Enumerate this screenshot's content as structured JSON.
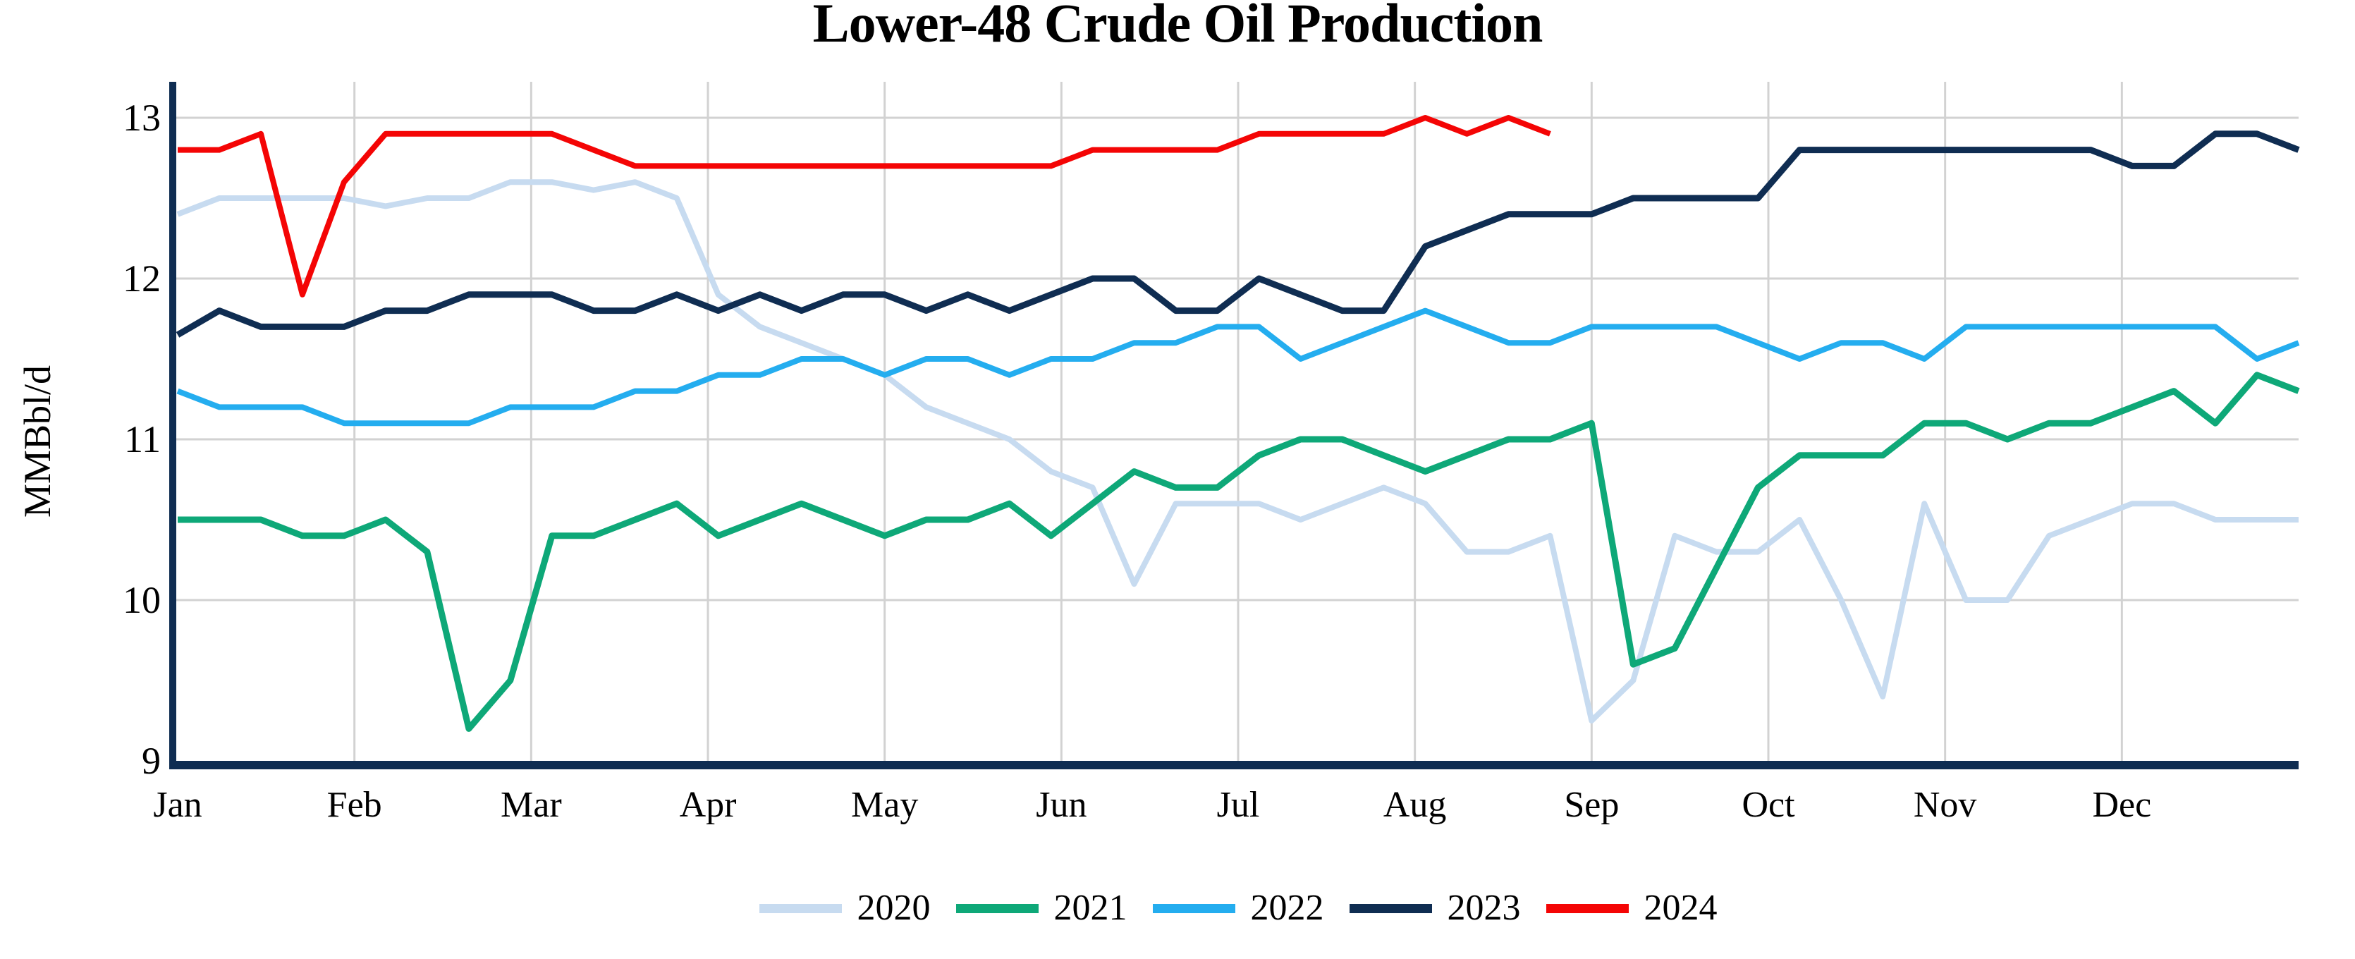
{
  "title": "Lower-48 Crude Oil Production",
  "y_axis": {
    "label": "MMBbl/d",
    "ticks": [
      13,
      12,
      11,
      10,
      9
    ],
    "min": 9,
    "max": 13
  },
  "x_axis": {
    "months": [
      "Jan",
      "Feb",
      "Mar",
      "Apr",
      "May",
      "Jun",
      "Jul",
      "Aug",
      "Sep",
      "Oct",
      "Nov",
      "Dec"
    ]
  },
  "legend": [
    {
      "label": "2020",
      "color": "#C7DBF0"
    },
    {
      "label": "2021",
      "color": "#0EA878"
    },
    {
      "label": "2022",
      "color": "#24ADEF"
    },
    {
      "label": "2023",
      "color": "#0F2D52"
    },
    {
      "label": "2024",
      "color": "#F40505"
    }
  ],
  "colors": {
    "axis": "#0F2D52",
    "gridline": "#D2D2D2",
    "text": "#000000",
    "background": "#FFFFFF"
  },
  "chart_data": {
    "type": "line",
    "title": "Lower-48 Crude Oil Production",
    "xlabel": "",
    "ylabel": "MMBbl/d",
    "ylim": [
      9,
      13
    ],
    "yticks": [
      9,
      10,
      11,
      12,
      13
    ],
    "x_unit": "week of year (weekly data, 52 weeks; 2024 partial through ~week 34)",
    "xtick_labels": [
      "Jan",
      "Feb",
      "Mar",
      "Apr",
      "May",
      "Jun",
      "Jul",
      "Aug",
      "Sep",
      "Oct",
      "Nov",
      "Dec"
    ],
    "grid": true,
    "legend_position": "bottom center",
    "series": [
      {
        "name": "2020",
        "color": "#C7DBF0",
        "line_width": 8,
        "values": [
          12.4,
          12.5,
          12.5,
          12.5,
          12.5,
          12.45,
          12.5,
          12.5,
          12.6,
          12.6,
          12.55,
          12.6,
          12.5,
          11.9,
          11.7,
          11.6,
          11.5,
          11.4,
          11.2,
          11.1,
          11.0,
          10.8,
          10.7,
          10.1,
          10.6,
          10.6,
          10.6,
          10.5,
          10.6,
          10.7,
          10.6,
          10.3,
          10.3,
          10.4,
          9.25,
          9.5,
          10.4,
          10.3,
          10.3,
          10.5,
          10.0,
          9.4,
          10.6,
          10.0,
          10.0,
          10.4,
          10.5,
          10.6,
          10.6,
          10.5,
          10.5,
          10.5
        ]
      },
      {
        "name": "2021",
        "color": "#0EA878",
        "line_width": 9,
        "values": [
          10.5,
          10.5,
          10.5,
          10.4,
          10.4,
          10.5,
          10.3,
          9.2,
          9.5,
          10.4,
          10.4,
          10.5,
          10.6,
          10.4,
          10.5,
          10.6,
          10.5,
          10.4,
          10.5,
          10.5,
          10.6,
          10.4,
          10.6,
          10.8,
          10.7,
          10.7,
          10.9,
          11.0,
          11.0,
          10.9,
          10.8,
          10.9,
          11.0,
          11.0,
          11.1,
          9.6,
          9.7,
          10.2,
          10.7,
          10.9,
          10.9,
          10.9,
          11.1,
          11.1,
          11.0,
          11.1,
          11.1,
          11.2,
          11.3,
          11.1,
          11.4,
          11.3
        ]
      },
      {
        "name": "2022",
        "color": "#24ADEF",
        "line_width": 8,
        "values": [
          11.3,
          11.2,
          11.2,
          11.2,
          11.1,
          11.1,
          11.1,
          11.1,
          11.2,
          11.2,
          11.2,
          11.3,
          11.3,
          11.4,
          11.4,
          11.5,
          11.5,
          11.4,
          11.5,
          11.5,
          11.4,
          11.5,
          11.5,
          11.6,
          11.6,
          11.7,
          11.7,
          11.5,
          11.6,
          11.7,
          11.8,
          11.7,
          11.6,
          11.6,
          11.7,
          11.7,
          11.7,
          11.7,
          11.6,
          11.5,
          11.6,
          11.6,
          11.5,
          11.7,
          11.7,
          11.7,
          11.7,
          11.7,
          11.7,
          11.7,
          11.5,
          11.6
        ]
      },
      {
        "name": "2023",
        "color": "#0F2D52",
        "line_width": 9,
        "values": [
          11.65,
          11.8,
          11.7,
          11.7,
          11.7,
          11.8,
          11.8,
          11.9,
          11.9,
          11.9,
          11.8,
          11.8,
          11.9,
          11.8,
          11.9,
          11.8,
          11.9,
          11.9,
          11.8,
          11.9,
          11.8,
          11.9,
          12.0,
          12.0,
          11.8,
          11.8,
          12.0,
          11.9,
          11.8,
          11.8,
          12.2,
          12.3,
          12.4,
          12.4,
          12.4,
          12.5,
          12.5,
          12.5,
          12.5,
          12.8,
          12.8,
          12.8,
          12.8,
          12.8,
          12.8,
          12.8,
          12.8,
          12.7,
          12.7,
          12.9,
          12.9,
          12.8
        ]
      },
      {
        "name": "2024",
        "color": "#F40505",
        "line_width": 8,
        "values": [
          12.8,
          12.8,
          12.9,
          11.9,
          12.6,
          12.9,
          12.9,
          12.9,
          12.9,
          12.9,
          12.8,
          12.7,
          12.7,
          12.7,
          12.7,
          12.7,
          12.7,
          12.7,
          12.7,
          12.7,
          12.7,
          12.7,
          12.8,
          12.8,
          12.8,
          12.8,
          12.9,
          12.9,
          12.9,
          12.9,
          13.0,
          12.9,
          13.0,
          12.9
        ]
      }
    ]
  }
}
